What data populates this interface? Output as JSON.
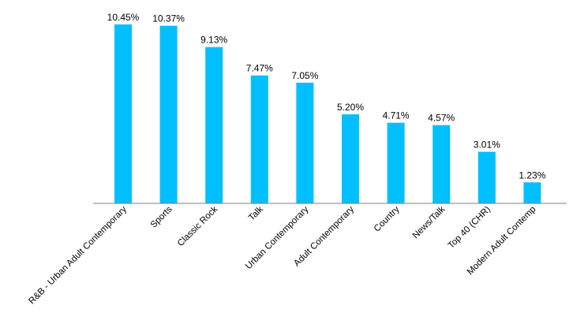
{
  "chart_data": {
    "type": "bar",
    "title": "",
    "xlabel": "",
    "ylabel": "",
    "ylim": [
      0,
      11.5
    ],
    "grid": false,
    "legend": "none",
    "bar_color": "#00BFFF",
    "categories": [
      "R&B - Urban Adult Contemporary",
      "Sports",
      "Classic Rock",
      "Talk",
      "Urban Contemporary",
      "Adult Contemporary",
      "Country",
      "News/Talk",
      "Top 40 (CHR)",
      "Modern Adult Contemp"
    ],
    "values": [
      10.45,
      10.37,
      9.13,
      7.47,
      7.05,
      5.2,
      4.71,
      4.57,
      3.01,
      1.23
    ],
    "data_labels": [
      "10.45%",
      "10.37%",
      "9.13%",
      "7.47%",
      "7.05%",
      "5.20%",
      "4.71%",
      "4.57%",
      "3.01%",
      "1.23%"
    ]
  }
}
